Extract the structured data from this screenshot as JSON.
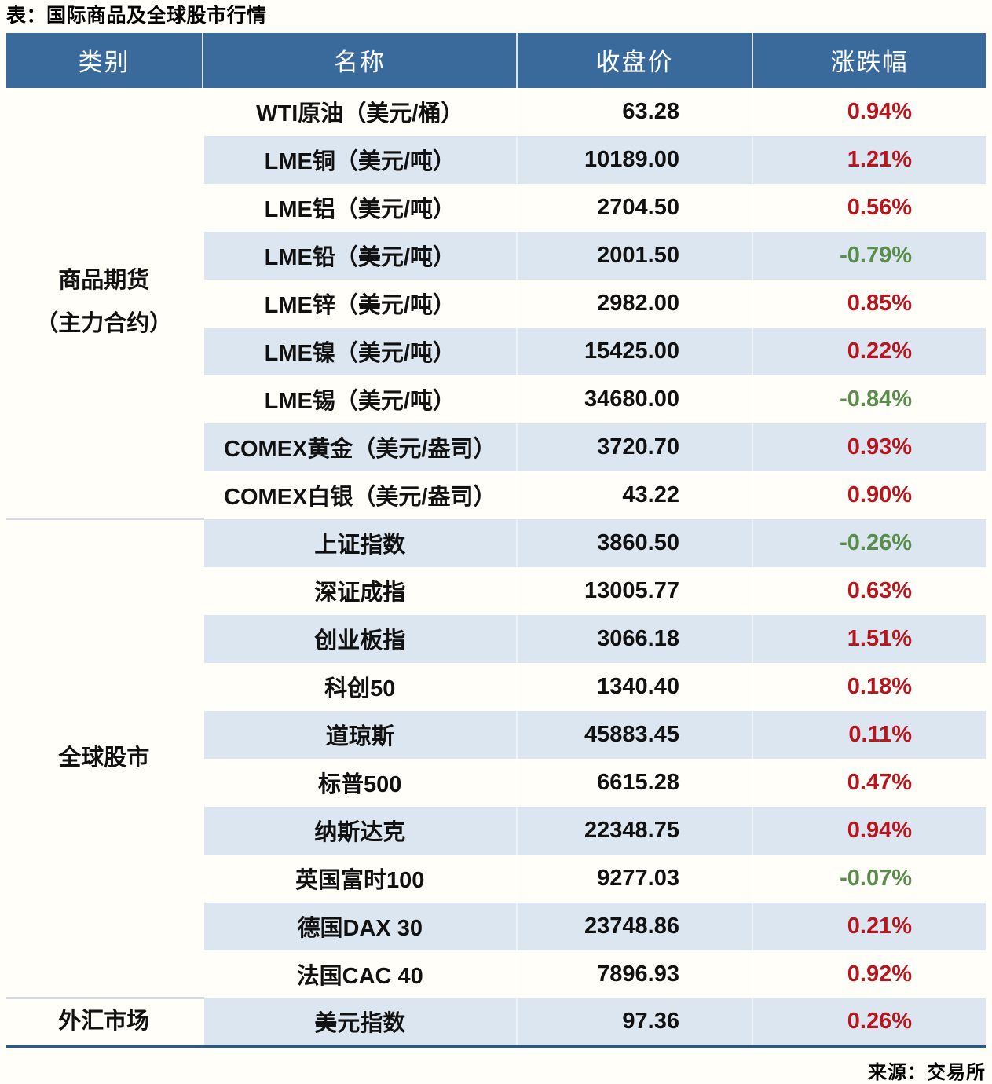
{
  "title": "表：国际商品及全球股市行情",
  "source": "来源：交易所",
  "colors": {
    "header_bg": "#3a6a9c",
    "row_alt_bg": "#dce6f0",
    "up_red": "#b7161f",
    "down_green": "#5a8c4b",
    "table_bottom_border": "#2e5a82",
    "page_bg": "#fffef8"
  },
  "table": {
    "headers": [
      "类别",
      "名称",
      "收盘价",
      "涨跌幅"
    ],
    "groups": [
      {
        "category": "商品期货\n（主力合约）",
        "rows": [
          {
            "name": "WTI原油（美元/桶）",
            "close": "63.28",
            "change": "0.94%",
            "direction": "up"
          },
          {
            "name": "LME铜（美元/吨）",
            "close": "10189.00",
            "change": "1.21%",
            "direction": "up"
          },
          {
            "name": "LME铝（美元/吨）",
            "close": "2704.50",
            "change": "0.56%",
            "direction": "up"
          },
          {
            "name": "LME铅（美元/吨）",
            "close": "2001.50",
            "change": "-0.79%",
            "direction": "down"
          },
          {
            "name": "LME锌（美元/吨）",
            "close": "2982.00",
            "change": "0.85%",
            "direction": "up"
          },
          {
            "name": "LME镍（美元/吨）",
            "close": "15425.00",
            "change": "0.22%",
            "direction": "up"
          },
          {
            "name": "LME锡（美元/吨）",
            "close": "34680.00",
            "change": "-0.84%",
            "direction": "down"
          },
          {
            "name": "COMEX黄金（美元/盎司）",
            "close": "3720.70",
            "change": "0.93%",
            "direction": "up"
          },
          {
            "name": "COMEX白银（美元/盎司）",
            "close": "43.22",
            "change": "0.90%",
            "direction": "up"
          }
        ]
      },
      {
        "category": "全球股市",
        "rows": [
          {
            "name": "上证指数",
            "close": "3860.50",
            "change": "-0.26%",
            "direction": "down"
          },
          {
            "name": "深证成指",
            "close": "13005.77",
            "change": "0.63%",
            "direction": "up"
          },
          {
            "name": "创业板指",
            "close": "3066.18",
            "change": "1.51%",
            "direction": "up"
          },
          {
            "name": "科创50",
            "close": "1340.40",
            "change": "0.18%",
            "direction": "up"
          },
          {
            "name": "道琼斯",
            "close": "45883.45",
            "change": "0.11%",
            "direction": "up"
          },
          {
            "name": "标普500",
            "close": "6615.28",
            "change": "0.47%",
            "direction": "up"
          },
          {
            "name": "纳斯达克",
            "close": "22348.75",
            "change": "0.94%",
            "direction": "up"
          },
          {
            "name": "英国富时100",
            "close": "9277.03",
            "change": "-0.07%",
            "direction": "down"
          },
          {
            "name": "德国DAX 30",
            "close": "23748.86",
            "change": "0.21%",
            "direction": "up"
          },
          {
            "name": "法国CAC 40",
            "close": "7896.93",
            "change": "0.92%",
            "direction": "up"
          }
        ]
      },
      {
        "category": "外汇市场",
        "rows": [
          {
            "name": "美元指数",
            "close": "97.36",
            "change": "0.26%",
            "direction": "up"
          }
        ]
      }
    ]
  },
  "chart_data": {
    "type": "table",
    "title": "表：国际商品及全球股市行情",
    "columns": [
      "类别",
      "名称",
      "收盘价",
      "涨跌幅"
    ],
    "rows": [
      [
        "商品期货（主力合约）",
        "WTI原油（美元/桶）",
        63.28,
        "0.94%"
      ],
      [
        "商品期货（主力合约）",
        "LME铜（美元/吨）",
        10189.0,
        "1.21%"
      ],
      [
        "商品期货（主力合约）",
        "LME铝（美元/吨）",
        2704.5,
        "0.56%"
      ],
      [
        "商品期货（主力合约）",
        "LME铅（美元/吨）",
        2001.5,
        "-0.79%"
      ],
      [
        "商品期货（主力合约）",
        "LME锌（美元/吨）",
        2982.0,
        "0.85%"
      ],
      [
        "商品期货（主力合约）",
        "LME镍（美元/吨）",
        15425.0,
        "0.22%"
      ],
      [
        "商品期货（主力合约）",
        "LME锡（美元/吨）",
        34680.0,
        "-0.84%"
      ],
      [
        "商品期货（主力合约）",
        "COMEX黄金（美元/盎司）",
        3720.7,
        "0.93%"
      ],
      [
        "商品期货（主力合约）",
        "COMEX白银（美元/盎司）",
        43.22,
        "0.90%"
      ],
      [
        "全球股市",
        "上证指数",
        3860.5,
        "-0.26%"
      ],
      [
        "全球股市",
        "深证成指",
        13005.77,
        "0.63%"
      ],
      [
        "全球股市",
        "创业板指",
        3066.18,
        "1.51%"
      ],
      [
        "全球股市",
        "科创50",
        1340.4,
        "0.18%"
      ],
      [
        "全球股市",
        "道琼斯",
        45883.45,
        "0.11%"
      ],
      [
        "全球股市",
        "标普500",
        6615.28,
        "0.47%"
      ],
      [
        "全球股市",
        "纳斯达克",
        22348.75,
        "0.94%"
      ],
      [
        "全球股市",
        "英国富时100",
        9277.03,
        "-0.07%"
      ],
      [
        "全球股市",
        "德国DAX 30",
        23748.86,
        "0.21%"
      ],
      [
        "全球股市",
        "法国CAC 40",
        7896.93,
        "0.92%"
      ],
      [
        "外汇市场",
        "美元指数",
        97.36,
        "0.26%"
      ]
    ],
    "legend": "red = 上涨(positive), green = 下跌(negative)",
    "source": "来源：交易所"
  }
}
